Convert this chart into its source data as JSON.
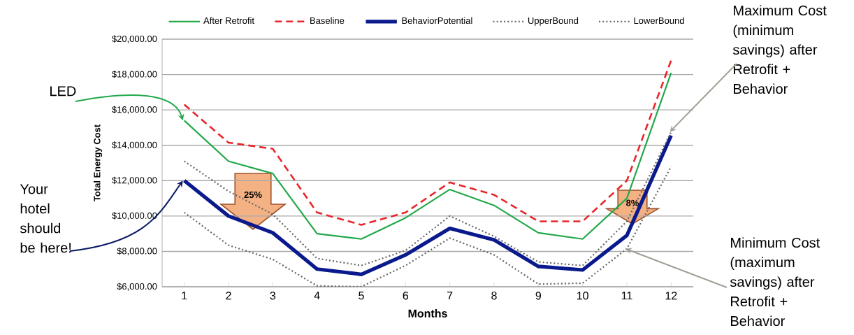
{
  "chart_data": {
    "type": "line",
    "xlabel": "Months",
    "ylabel": "Total Energy Cost",
    "categories": [
      "1",
      "2",
      "3",
      "4",
      "5",
      "6",
      "7",
      "8",
      "9",
      "10",
      "11",
      "12"
    ],
    "series": [
      {
        "name": "After Retrofit",
        "color": "#22a84a",
        "line_style": "solid",
        "values": [
          15400,
          13100,
          12400,
          9000,
          8700,
          9900,
          11500,
          10600,
          9050,
          8700,
          11000,
          18100
        ]
      },
      {
        "name": "Baseline",
        "color": "#e8262a",
        "line_style": "dashed",
        "values": [
          16300,
          14150,
          13800,
          10200,
          9500,
          10200,
          11900,
          11200,
          9700,
          9700,
          12000,
          18800
        ]
      },
      {
        "name": "BehaviorPotential",
        "color": "#0a1a8c",
        "line_style": "solid",
        "values": [
          12000,
          10000,
          9050,
          7000,
          6700,
          7800,
          9300,
          8650,
          7150,
          6950,
          8900,
          14550
        ]
      },
      {
        "name": "UpperBound",
        "color": "#666666",
        "line_style": "dotted",
        "values": [
          13100,
          11400,
          10100,
          7600,
          7200,
          8050,
          10000,
          8850,
          7400,
          7200,
          9700,
          14750
        ]
      },
      {
        "name": "LowerBound",
        "color": "#666666",
        "line_style": "dotted",
        "values": [
          10200,
          8350,
          7550,
          6050,
          6000,
          7200,
          8750,
          7800,
          6150,
          6200,
          8150,
          12800
        ]
      }
    ],
    "ylim": [
      6000,
      20000
    ],
    "yticks": [
      {
        "value": 6000,
        "label": "$6,000.00"
      },
      {
        "value": 8000,
        "label": "$8,000.00"
      },
      {
        "value": 10000,
        "label": "$10,000.00"
      },
      {
        "value": 12000,
        "label": "$12,000.00"
      },
      {
        "value": 14000,
        "label": "$14,000.00"
      },
      {
        "value": 16000,
        "label": "$16,000.00"
      },
      {
        "value": 18000,
        "label": "$18,000.00"
      },
      {
        "value": 20000,
        "label": "$20,000.00"
      }
    ],
    "grid": "y",
    "legend": "top",
    "marker": "none",
    "annotations": [
      {
        "text": "LED",
        "x": "1",
        "y": 15400
      },
      {
        "text": "Your hotel should be here!",
        "x": "1",
        "y": 12000
      },
      {
        "text": "Maximum Cost (minimum savings) after Retrofit + Behavior",
        "x": "12",
        "y": 14750
      },
      {
        "text": "Minimum Cost (maximum savings) after Retrofit + Behavior",
        "x": "11",
        "y": 8150
      },
      "25%",
      "8%"
    ]
  }
}
